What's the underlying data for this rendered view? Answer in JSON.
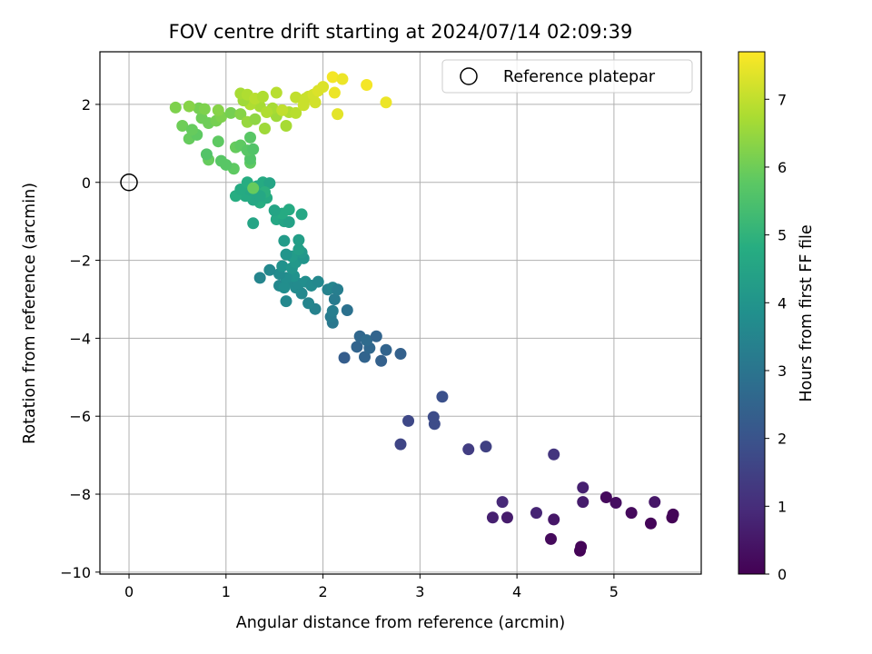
{
  "chart_data": {
    "type": "scatter",
    "title": "FOV centre drift starting at 2024/07/14 02:09:39",
    "xlabel": "Angular distance from reference (arcmin)",
    "ylabel": "Rotation from reference (arcmin)",
    "xlim": [
      -0.3,
      5.9
    ],
    "ylim": [
      -10.05,
      3.35
    ],
    "xticks": [
      0,
      1,
      2,
      3,
      4,
      5
    ],
    "xtick_labels": [
      "0",
      "1",
      "2",
      "3",
      "4",
      "5"
    ],
    "yticks": [
      -10,
      -8,
      -6,
      -4,
      -2,
      0,
      2
    ],
    "ytick_labels": [
      "−10",
      "−8",
      "−6",
      "−4",
      "−2",
      "0",
      "2"
    ],
    "grid": true,
    "legend": {
      "entries": [
        "Reference platepar"
      ],
      "placement": "top-right"
    },
    "reference_point": {
      "name": "Reference platepar",
      "x": 0,
      "y": 0,
      "marker": "open-circle"
    },
    "colorbar": {
      "label": "Hours from first FF file",
      "range": [
        0,
        7.7
      ],
      "ticks": [
        0,
        1,
        2,
        3,
        4,
        5,
        6,
        7
      ],
      "tick_labels": [
        "0",
        "1",
        "2",
        "3",
        "4",
        "5",
        "6",
        "7"
      ],
      "colormap": "viridis"
    },
    "points": [
      [
        4.65,
        -9.45,
        0.05
      ],
      [
        4.66,
        -9.35,
        0.1
      ],
      [
        4.35,
        -9.15,
        0.2
      ],
      [
        5.38,
        -8.75,
        0.1
      ],
      [
        5.6,
        -8.6,
        0.05
      ],
      [
        5.61,
        -8.52,
        0.1
      ],
      [
        5.18,
        -8.48,
        0.2
      ],
      [
        4.38,
        -8.65,
        0.5
      ],
      [
        3.9,
        -8.6,
        0.6
      ],
      [
        3.75,
        -8.6,
        0.7
      ],
      [
        4.2,
        -8.48,
        0.8
      ],
      [
        3.85,
        -8.2,
        0.9
      ],
      [
        4.68,
        -8.2,
        0.6
      ],
      [
        5.02,
        -8.22,
        0.3
      ],
      [
        5.42,
        -8.2,
        0.5
      ],
      [
        4.92,
        -8.08,
        0.2
      ],
      [
        4.68,
        -7.83,
        0.7
      ],
      [
        4.38,
        -6.98,
        1.2
      ],
      [
        3.5,
        -6.85,
        1.4
      ],
      [
        3.68,
        -6.78,
        1.5
      ],
      [
        2.8,
        -6.72,
        1.6
      ],
      [
        2.88,
        -6.12,
        1.7
      ],
      [
        3.15,
        -6.2,
        1.8
      ],
      [
        3.14,
        -6.02,
        1.8
      ],
      [
        3.23,
        -5.5,
        1.9
      ],
      [
        2.22,
        -4.5,
        2.3
      ],
      [
        2.43,
        -4.48,
        2.5
      ],
      [
        2.6,
        -4.58,
        2.4
      ],
      [
        2.35,
        -4.22,
        2.5
      ],
      [
        2.48,
        -4.25,
        2.6
      ],
      [
        2.65,
        -4.3,
        2.5
      ],
      [
        2.8,
        -4.4,
        2.4
      ],
      [
        2.38,
        -3.95,
        2.6
      ],
      [
        2.45,
        -4.05,
        2.7
      ],
      [
        2.55,
        -3.95,
        2.5
      ],
      [
        2.25,
        -3.28,
        2.9
      ],
      [
        2.1,
        -3.6,
        3.1
      ],
      [
        2.08,
        -3.45,
        3.2
      ],
      [
        2.1,
        -3.3,
        3.3
      ],
      [
        2.12,
        -3.0,
        3.2
      ],
      [
        2.05,
        -2.75,
        3.4
      ],
      [
        2.1,
        -2.7,
        3.5
      ],
      [
        2.15,
        -2.75,
        3.3
      ],
      [
        1.92,
        -3.25,
        3.4
      ],
      [
        1.85,
        -3.1,
        3.5
      ],
      [
        1.78,
        -2.85,
        3.6
      ],
      [
        1.72,
        -2.7,
        3.7
      ],
      [
        1.62,
        -3.05,
        3.6
      ],
      [
        1.55,
        -2.65,
        3.6
      ],
      [
        1.65,
        -2.55,
        3.7
      ],
      [
        1.6,
        -2.7,
        3.8
      ],
      [
        1.75,
        -2.6,
        3.7
      ],
      [
        1.82,
        -2.55,
        3.8
      ],
      [
        1.88,
        -2.65,
        3.7
      ],
      [
        1.95,
        -2.55,
        3.6
      ],
      [
        1.7,
        -2.4,
        3.9
      ],
      [
        1.62,
        -2.45,
        3.8
      ],
      [
        1.55,
        -2.35,
        3.7
      ],
      [
        1.35,
        -2.45,
        3.5
      ],
      [
        1.45,
        -2.25,
        3.6
      ],
      [
        1.58,
        -2.15,
        3.9
      ],
      [
        1.68,
        -2.2,
        4.0
      ],
      [
        1.72,
        -2.05,
        4.1
      ],
      [
        1.8,
        -1.95,
        4.0
      ],
      [
        1.68,
        -1.9,
        4.2
      ],
      [
        1.78,
        -1.8,
        4.1
      ],
      [
        1.62,
        -1.85,
        4.0
      ],
      [
        1.75,
        -1.72,
        4.3
      ],
      [
        1.6,
        -1.5,
        4.2
      ],
      [
        1.75,
        -1.48,
        4.3
      ],
      [
        1.28,
        -1.05,
        4.5
      ],
      [
        1.52,
        -0.95,
        4.6
      ],
      [
        1.6,
        -1.0,
        4.5
      ],
      [
        1.65,
        -1.02,
        4.4
      ],
      [
        1.58,
        -0.8,
        4.7
      ],
      [
        1.78,
        -0.82,
        4.6
      ],
      [
        1.65,
        -0.7,
        4.7
      ],
      [
        1.5,
        -0.72,
        4.5
      ],
      [
        1.35,
        -0.52,
        4.8
      ],
      [
        1.42,
        -0.4,
        4.7
      ],
      [
        1.28,
        -0.45,
        4.6
      ],
      [
        1.2,
        -0.35,
        4.7
      ],
      [
        1.1,
        -0.35,
        4.8
      ],
      [
        1.25,
        -0.2,
        4.6
      ],
      [
        1.15,
        -0.18,
        4.7
      ],
      [
        1.32,
        -0.1,
        4.6
      ],
      [
        1.22,
        0.0,
        4.8
      ],
      [
        1.38,
        0.0,
        4.7
      ],
      [
        1.45,
        -0.02,
        4.5
      ],
      [
        1.4,
        -0.25,
        4.9
      ],
      [
        1.35,
        -0.35,
        4.6
      ],
      [
        1.28,
        -0.15,
        5.9
      ],
      [
        1.08,
        0.35,
        5.8
      ],
      [
        1.0,
        0.45,
        5.7
      ],
      [
        1.25,
        0.5,
        5.8
      ],
      [
        1.25,
        0.6,
        5.6
      ],
      [
        0.95,
        0.55,
        5.7
      ],
      [
        0.82,
        0.58,
        5.9
      ],
      [
        0.8,
        0.72,
        5.6
      ],
      [
        1.1,
        0.9,
        5.9
      ],
      [
        1.15,
        0.95,
        5.8
      ],
      [
        1.22,
        0.82,
        5.7
      ],
      [
        1.28,
        0.85,
        5.6
      ],
      [
        0.92,
        1.05,
        5.8
      ],
      [
        1.25,
        1.15,
        5.7
      ],
      [
        0.62,
        1.12,
        5.9
      ],
      [
        0.7,
        1.22,
        5.8
      ],
      [
        0.55,
        1.45,
        6.0
      ],
      [
        0.65,
        1.35,
        5.9
      ],
      [
        0.82,
        1.52,
        6.0
      ],
      [
        0.9,
        1.58,
        6.1
      ],
      [
        0.75,
        1.65,
        6.0
      ],
      [
        0.95,
        1.68,
        6.2
      ],
      [
        1.05,
        1.78,
        6.1
      ],
      [
        0.92,
        1.85,
        6.3
      ],
      [
        0.72,
        1.9,
        6.1
      ],
      [
        0.78,
        1.88,
        6.2
      ],
      [
        0.48,
        1.92,
        6.2
      ],
      [
        0.62,
        1.95,
        6.3
      ],
      [
        1.15,
        1.75,
        6.3
      ],
      [
        1.22,
        1.55,
        6.5
      ],
      [
        1.3,
        1.62,
        6.4
      ],
      [
        1.4,
        1.38,
        6.6
      ],
      [
        1.62,
        1.45,
        6.7
      ],
      [
        1.52,
        1.7,
        6.6
      ],
      [
        1.65,
        1.8,
        6.8
      ],
      [
        1.72,
        1.78,
        6.9
      ],
      [
        1.48,
        1.9,
        6.7
      ],
      [
        1.35,
        1.95,
        6.7
      ],
      [
        1.25,
        2.0,
        6.8
      ],
      [
        1.18,
        2.1,
        6.6
      ],
      [
        1.15,
        2.28,
        6.7
      ],
      [
        1.22,
        2.25,
        6.8
      ],
      [
        1.3,
        2.15,
        6.9
      ],
      [
        1.38,
        2.2,
        6.8
      ],
      [
        1.52,
        2.3,
        6.9
      ],
      [
        1.58,
        1.85,
        7.0
      ],
      [
        1.72,
        2.18,
        7.0
      ],
      [
        1.82,
        2.15,
        7.1
      ],
      [
        1.85,
        2.2,
        7.1
      ],
      [
        1.9,
        2.25,
        7.2
      ],
      [
        1.95,
        2.35,
        7.3
      ],
      [
        1.92,
        2.05,
        7.2
      ],
      [
        1.8,
        1.98,
        7.1
      ],
      [
        2.0,
        2.45,
        7.3
      ],
      [
        2.12,
        2.3,
        7.5
      ],
      [
        2.15,
        1.75,
        7.4
      ],
      [
        2.1,
        2.7,
        7.6
      ],
      [
        2.2,
        2.65,
        7.5
      ],
      [
        2.45,
        2.5,
        7.6
      ],
      [
        2.65,
        2.05,
        7.5
      ],
      [
        1.42,
        1.8,
        6.8
      ]
    ]
  }
}
